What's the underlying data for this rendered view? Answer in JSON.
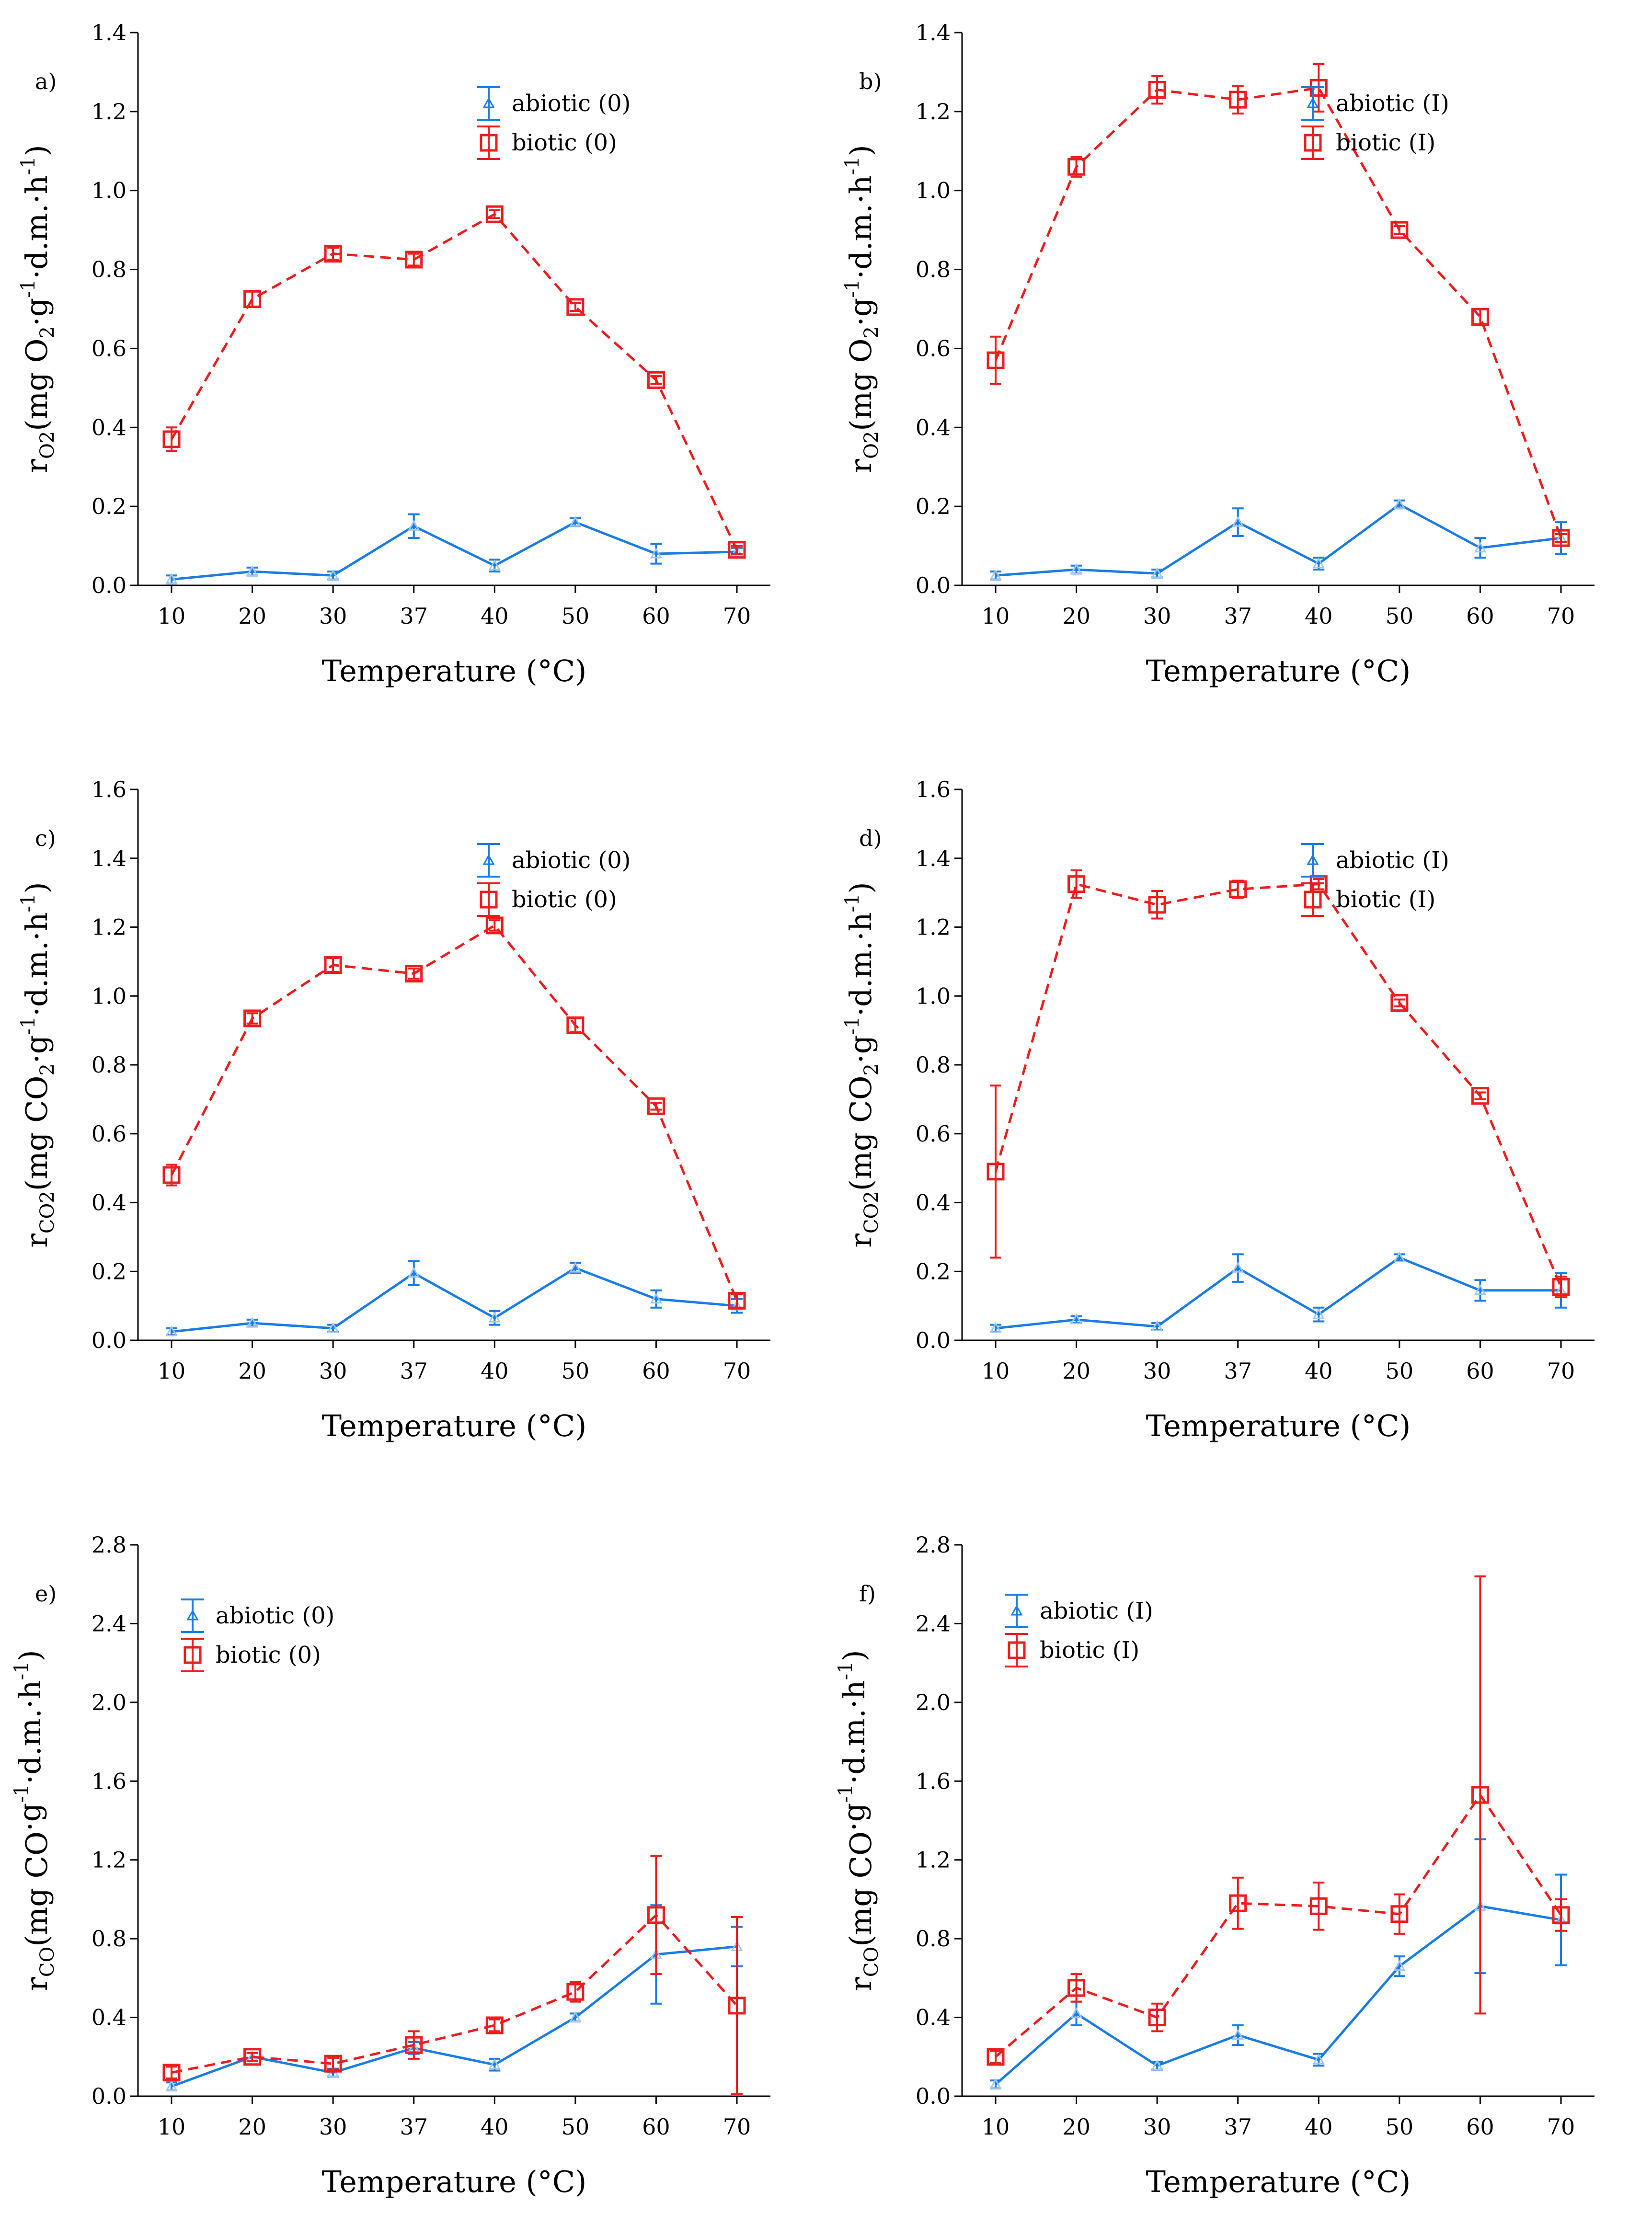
{
  "colors": {
    "abiotic": "#1a7ce6",
    "biotic": "#ee1c1c"
  },
  "chart_data": [
    {
      "type": "line",
      "panel_label": "a)",
      "xlabel": "Temperature (°C)",
      "ylabel": {
        "r": "r",
        "sub": "O2",
        "unit": "(mg O",
        "unit_sub": "2",
        "dot1": "·g",
        "sup": "-1",
        "tail": "·d.m.·h",
        "sup2": "-1",
        "close": ")"
      },
      "categories": [
        "10",
        "20",
        "30",
        "37",
        "40",
        "50",
        "60",
        "70"
      ],
      "ylim": [
        0,
        1.4
      ],
      "yticks": [
        "0.0",
        "0.2",
        "0.4",
        "0.6",
        "0.8",
        "1.0",
        "1.2",
        "1.4"
      ],
      "legend_position": "top-right",
      "series": [
        {
          "name": "abiotic (0)",
          "values": [
            0.015,
            0.035,
            0.025,
            0.15,
            0.05,
            0.16,
            0.08,
            0.085
          ],
          "errors": [
            0.01,
            0.01,
            0.01,
            0.03,
            0.015,
            0.01,
            0.025,
            0.01
          ]
        },
        {
          "name": "biotic (0)",
          "values": [
            0.37,
            0.725,
            0.84,
            0.825,
            0.94,
            0.705,
            0.52,
            0.09
          ],
          "errors": [
            0.03,
            0.02,
            0.015,
            0.015,
            0.01,
            0.01,
            0.01,
            0.01
          ]
        }
      ]
    },
    {
      "type": "line",
      "panel_label": "b)",
      "xlabel": "Temperature (°C)",
      "ylabel": {
        "r": "r",
        "sub": "O2",
        "unit": "(mg O",
        "unit_sub": "2",
        "dot1": "·g",
        "sup": "-1",
        "tail": "·d.m.·h",
        "sup2": "-1",
        "close": ")"
      },
      "categories": [
        "10",
        "20",
        "30",
        "37",
        "40",
        "50",
        "60",
        "70"
      ],
      "ylim": [
        0,
        1.4
      ],
      "yticks": [
        "0.0",
        "0.2",
        "0.4",
        "0.6",
        "0.8",
        "1.0",
        "1.2",
        "1.4"
      ],
      "legend_position": "top-right",
      "series": [
        {
          "name": "abiotic (I)",
          "values": [
            0.025,
            0.04,
            0.03,
            0.16,
            0.055,
            0.205,
            0.095,
            0.12
          ],
          "errors": [
            0.01,
            0.01,
            0.01,
            0.035,
            0.015,
            0.01,
            0.025,
            0.04
          ]
        },
        {
          "name": "biotic (I)",
          "values": [
            0.57,
            1.06,
            1.255,
            1.23,
            1.26,
            0.9,
            0.68,
            0.12
          ],
          "errors": [
            0.06,
            0.025,
            0.035,
            0.035,
            0.06,
            0.01,
            0.02,
            0.01
          ]
        }
      ]
    },
    {
      "type": "line",
      "panel_label": "c)",
      "xlabel": "Temperature (°C)",
      "ylabel": {
        "r": "r",
        "sub": "CO2",
        "unit": "(mg CO",
        "unit_sub": "2",
        "dot1": "·g",
        "sup": "-1",
        "tail": "·d.m.·h",
        "sup2": "-1",
        "close": ")"
      },
      "categories": [
        "10",
        "20",
        "30",
        "37",
        "40",
        "50",
        "60",
        "70"
      ],
      "ylim": [
        0,
        1.6
      ],
      "yticks": [
        "0.0",
        "0.2",
        "0.4",
        "0.6",
        "0.8",
        "1.0",
        "1.2",
        "1.4",
        "1.6"
      ],
      "legend_position": "top-right",
      "series": [
        {
          "name": "abiotic (0)",
          "values": [
            0.025,
            0.05,
            0.035,
            0.195,
            0.065,
            0.21,
            0.12,
            0.1
          ],
          "errors": [
            0.01,
            0.01,
            0.01,
            0.035,
            0.02,
            0.015,
            0.025,
            0.02
          ]
        },
        {
          "name": "biotic (0)",
          "values": [
            0.48,
            0.935,
            1.09,
            1.065,
            1.205,
            0.915,
            0.68,
            0.115
          ],
          "errors": [
            0.03,
            0.015,
            0.02,
            0.015,
            0.015,
            0.02,
            0.01,
            0.02
          ]
        }
      ]
    },
    {
      "type": "line",
      "panel_label": "d)",
      "xlabel": "Temperature (°C)",
      "ylabel": {
        "r": "r",
        "sub": "CO2",
        "unit": "(mg CO",
        "unit_sub": "2",
        "dot1": "·g",
        "sup": "-1",
        "tail": "·d.m.·h",
        "sup2": "-1",
        "close": ")"
      },
      "categories": [
        "10",
        "20",
        "30",
        "37",
        "40",
        "50",
        "60",
        "70"
      ],
      "ylim": [
        0,
        1.6
      ],
      "yticks": [
        "0.0",
        "0.2",
        "0.4",
        "0.6",
        "0.8",
        "1.0",
        "1.2",
        "1.4",
        "1.6"
      ],
      "legend_position": "top-right",
      "series": [
        {
          "name": "abiotic (I)",
          "values": [
            0.035,
            0.06,
            0.04,
            0.21,
            0.075,
            0.24,
            0.145,
            0.145
          ],
          "errors": [
            0.01,
            0.01,
            0.01,
            0.04,
            0.02,
            0.01,
            0.03,
            0.05
          ]
        },
        {
          "name": "biotic (I)",
          "values": [
            0.49,
            1.325,
            1.265,
            1.31,
            1.325,
            0.98,
            0.71,
            0.155
          ],
          "errors": [
            0.25,
            0.04,
            0.04,
            0.025,
            0.015,
            0.01,
            0.01,
            0.03
          ]
        }
      ]
    },
    {
      "type": "line",
      "panel_label": "e)",
      "xlabel": "Temperature (°C)",
      "ylabel": {
        "r": "r",
        "sub": "CO",
        "unit": "(mg CO",
        "unit_sub": "",
        "dot1": "·g",
        "sup": "-1",
        "tail": "·d.m.·h",
        "sup2": "-1",
        "close": ")"
      },
      "categories": [
        "10",
        "20",
        "30",
        "37",
        "40",
        "50",
        "60",
        "70"
      ],
      "ylim": [
        0,
        2.8
      ],
      "yticks": [
        "0.0",
        "0.4",
        "0.8",
        "1.2",
        "1.6",
        "2.0",
        "2.4",
        "2.8"
      ],
      "legend_position": "top-left",
      "series": [
        {
          "name": "abiotic (0)",
          "values": [
            0.05,
            0.2,
            0.12,
            0.245,
            0.16,
            0.4,
            0.72,
            0.76
          ],
          "errors": [
            0.02,
            0.02,
            0.02,
            0.03,
            0.03,
            0.02,
            0.25,
            0.1
          ]
        },
        {
          "name": "biotic (0)",
          "values": [
            0.12,
            0.2,
            0.165,
            0.26,
            0.36,
            0.53,
            0.92,
            0.46
          ],
          "errors": [
            0.03,
            0.02,
            0.03,
            0.07,
            0.03,
            0.05,
            0.3,
            0.45
          ]
        }
      ]
    },
    {
      "type": "line",
      "panel_label": "f)",
      "xlabel": "Temperature (°C)",
      "ylabel": {
        "r": "r",
        "sub": "CO",
        "unit": "(mg CO",
        "unit_sub": "",
        "dot1": "·g",
        "sup": "-1",
        "tail": "·d.m.·h",
        "sup2": "-1",
        "close": ")"
      },
      "categories": [
        "10",
        "20",
        "30",
        "37",
        "40",
        "50",
        "60",
        "70"
      ],
      "ylim": [
        0,
        2.8
      ],
      "yticks": [
        "0.0",
        "0.4",
        "0.8",
        "1.2",
        "1.6",
        "2.0",
        "2.4",
        "2.8"
      ],
      "legend_position": "top-left",
      "series": [
        {
          "name": "abiotic (I)",
          "values": [
            0.06,
            0.42,
            0.155,
            0.31,
            0.185,
            0.66,
            0.965,
            0.895
          ],
          "errors": [
            0.02,
            0.06,
            0.02,
            0.05,
            0.03,
            0.05,
            0.34,
            0.23
          ]
        },
        {
          "name": "biotic (I)",
          "values": [
            0.2,
            0.55,
            0.4,
            0.98,
            0.965,
            0.925,
            1.53,
            0.92
          ],
          "errors": [
            0.03,
            0.07,
            0.07,
            0.13,
            0.12,
            0.1,
            1.11,
            0.08
          ]
        }
      ]
    }
  ]
}
